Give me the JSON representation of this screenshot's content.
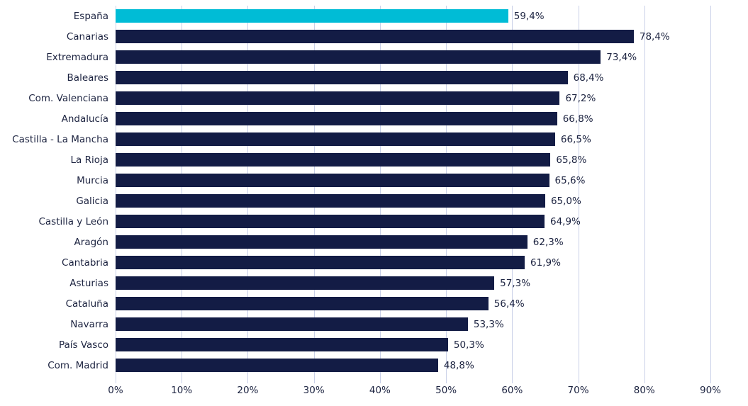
{
  "chart_data": {
    "type": "bar",
    "orientation": "horizontal",
    "title": "",
    "xlabel": "",
    "ylabel": "",
    "categories": [
      "España",
      "Canarias",
      "Extremadura",
      "Baleares",
      "Com. Valenciana",
      "Andalucía",
      "Castilla - La Mancha",
      "La Rioja",
      "Murcia",
      "Galicia",
      "Castilla y León",
      "Aragón",
      "Cantabria",
      "Asturias",
      "Cataluña",
      "Navarra",
      "País Vasco",
      "Com. Madrid"
    ],
    "values": [
      59.4,
      78.4,
      73.4,
      68.4,
      67.2,
      66.8,
      66.5,
      65.8,
      65.6,
      65.0,
      64.9,
      62.3,
      61.9,
      57.3,
      56.4,
      53.3,
      50.3,
      48.8
    ],
    "value_labels": [
      "59,4%",
      "78,4%",
      "73,4%",
      "68,4%",
      "67,2%",
      "66,8%",
      "66,5%",
      "65,8%",
      "65,6%",
      "65,0%",
      "64,9%",
      "62,3%",
      "61,9%",
      "57,3%",
      "56,4%",
      "53,3%",
      "50,3%",
      "48,8%"
    ],
    "x_ticks": [
      "0%",
      "10%",
      "20%",
      "30%",
      "40%",
      "50%",
      "60%",
      "70%",
      "80%",
      "90%"
    ],
    "x_tick_values": [
      0,
      10,
      20,
      30,
      40,
      50,
      60,
      70,
      80,
      90
    ],
    "xlim": [
      0,
      90
    ],
    "grid": "vertical",
    "legend": "none",
    "highlight_category": "España",
    "colors": {
      "highlight_bar": "#00bcd6",
      "default_bar": "#131c45",
      "gridline": "#c9d0e8",
      "text": "#1c2340"
    }
  }
}
